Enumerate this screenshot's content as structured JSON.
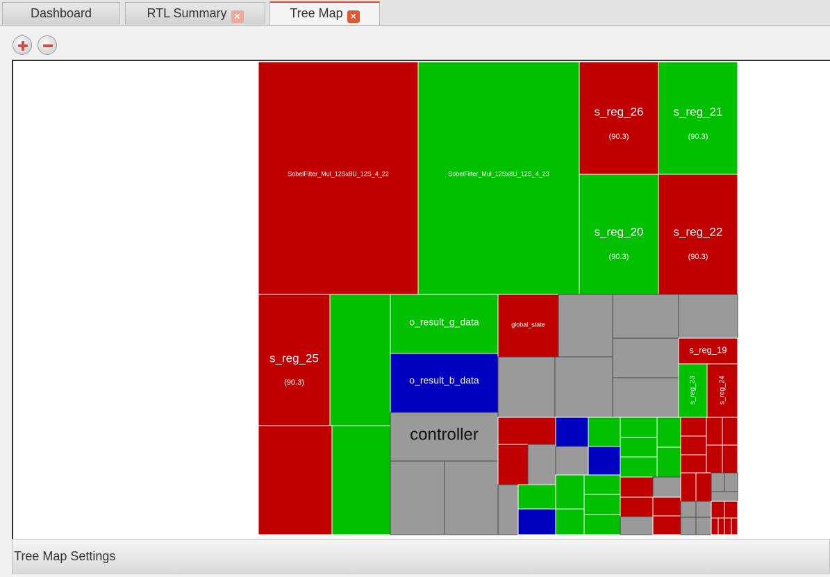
{
  "tabs": [
    {
      "label": "Dashboard",
      "closable": false,
      "active": false
    },
    {
      "label": "RTL Summary",
      "closable": true,
      "active": false
    },
    {
      "label": "Tree Map",
      "closable": true,
      "active": true
    }
  ],
  "toolbar": {
    "zoom_in_icon": "plus-icon",
    "zoom_out_icon": "minus-icon"
  },
  "colors": {
    "red": "#c00000",
    "green": "#00c000",
    "blue": "#0000c0",
    "gray": "#9a9a9a"
  },
  "treemap": {
    "cells": [
      {
        "name": "SobelFilter_Mul_12Sx8U_12S_4_22",
        "label": "SobelFilter_Mul_12Sx8U_12S_4_22",
        "color": "red"
      },
      {
        "name": "SobelFilter_Mul_12Sx8U_12S_4_23",
        "label": "SobelFilter_Mul_12Sx8U_12S_4_23",
        "color": "green"
      },
      {
        "name": "s_reg_26",
        "label": "s_reg_26",
        "value": "(90.3)",
        "color": "red"
      },
      {
        "name": "s_reg_21",
        "label": "s_reg_21",
        "value": "(90.3)",
        "color": "green"
      },
      {
        "name": "s_reg_20",
        "label": "s_reg_20",
        "value": "(90.3)",
        "color": "green"
      },
      {
        "name": "s_reg_22",
        "label": "s_reg_22",
        "value": "(90.3)",
        "color": "red"
      },
      {
        "name": "s_reg_25",
        "label": "s_reg_25",
        "value": "(90.3)",
        "color": "red"
      },
      {
        "name": "o_result_g_data",
        "label": "o_result_g_data",
        "color": "green"
      },
      {
        "name": "o_result_b_data",
        "label": "o_result_b_data",
        "color": "blue"
      },
      {
        "name": "global_state",
        "label": "global_state",
        "color": "red"
      },
      {
        "name": "s_reg_19",
        "label": "s_reg_19",
        "color": "red"
      },
      {
        "name": "s_reg_23",
        "label": "s_reg_23",
        "color": "green"
      },
      {
        "name": "s_reg_24",
        "label": "s_reg_24",
        "color": "red"
      },
      {
        "name": "controller",
        "label": "controller",
        "color": "gray"
      }
    ]
  },
  "settings": {
    "label": "Tree Map Settings"
  }
}
